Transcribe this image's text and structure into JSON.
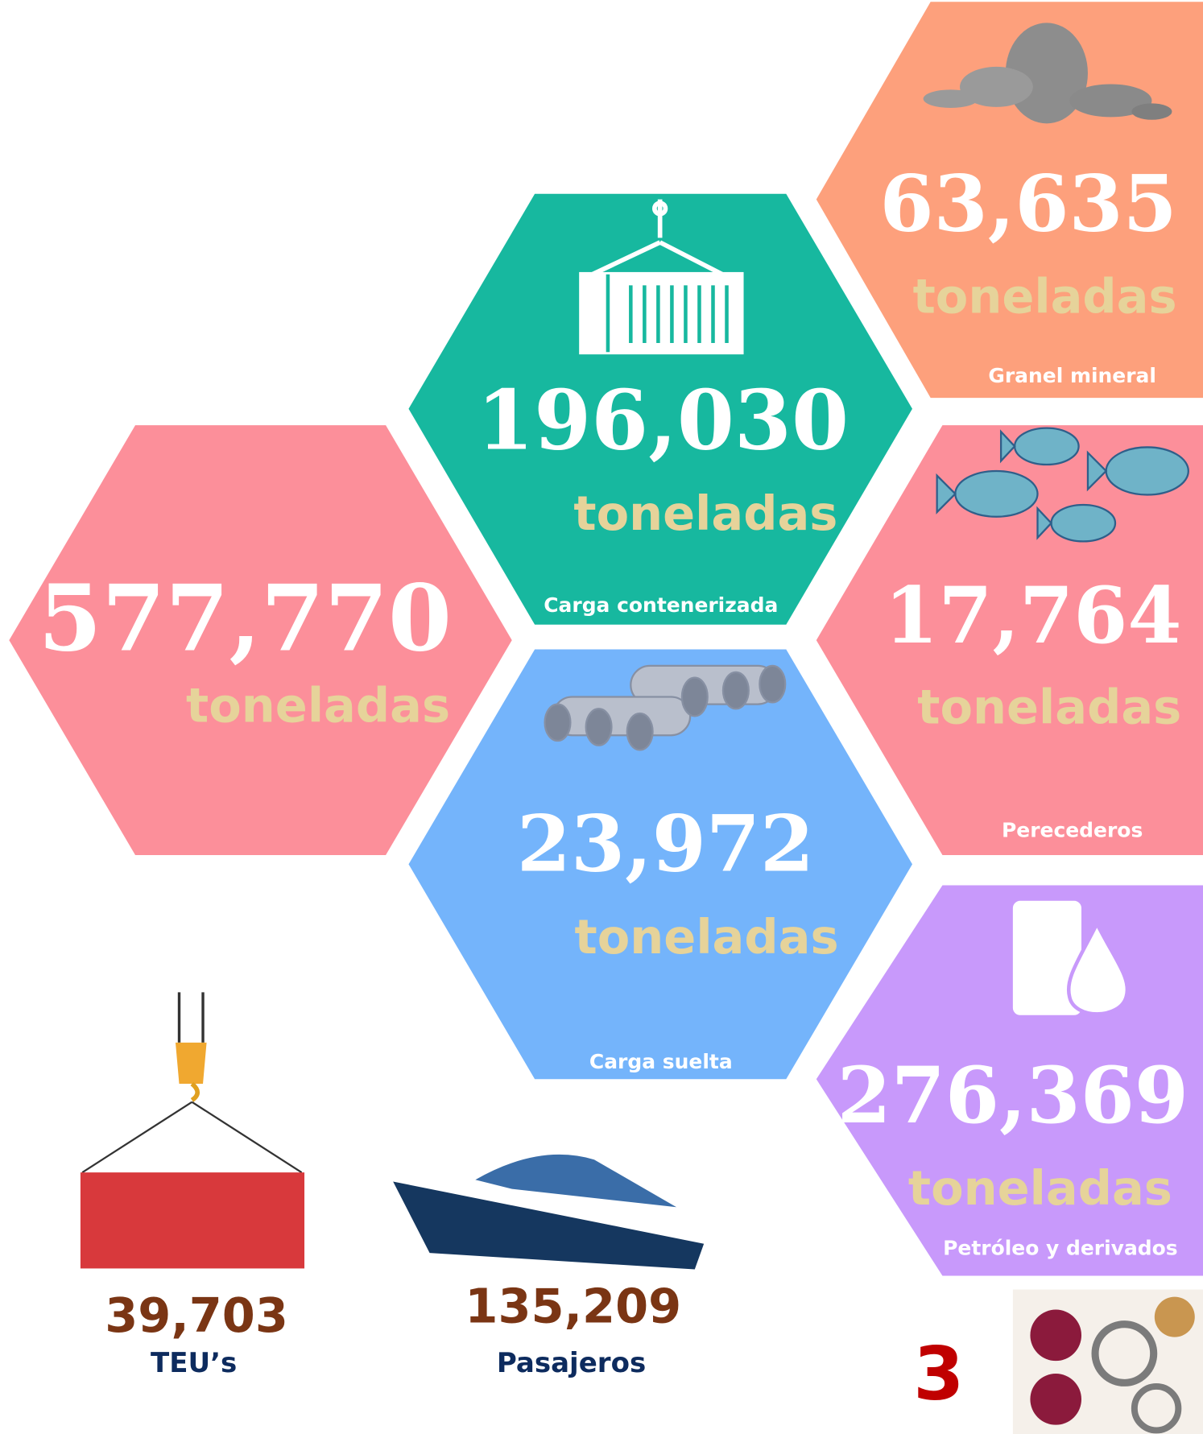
{
  "hexes": [
    {
      "value": "63,635",
      "unit": "toneladas",
      "label": "Granel mineral"
    },
    {
      "value": "196,030",
      "unit": "toneladas",
      "label": "Carga contenerizada"
    },
    {
      "value": "577,770",
      "unit": "toneladas"
    },
    {
      "value": "17,764",
      "unit": "toneladas",
      "label": "Perecederos"
    },
    {
      "value": "23,972",
      "unit": "toneladas",
      "label": "Carga suelta"
    },
    {
      "value": "276,369",
      "unit": "toneladas",
      "label": "Petróleo y derivados"
    }
  ],
  "stats": [
    {
      "value": "39,703",
      "label": "TEU’s"
    },
    {
      "value": "135,209",
      "label": "Pasajeros"
    }
  ],
  "page_number": "3"
}
